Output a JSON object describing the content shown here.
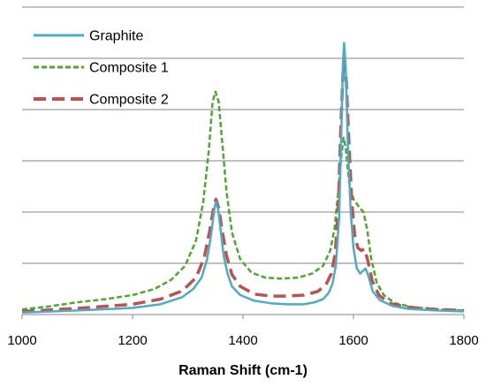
{
  "chart_data": {
    "type": "line",
    "title": "",
    "xlabel": "Raman Shift (cm-1)",
    "ylabel": "",
    "xlim": [
      1000,
      1800
    ],
    "ylim": [
      0,
      6
    ],
    "x_ticks": [
      "1000",
      "1200",
      "1400",
      "1600",
      "1800"
    ],
    "grid": "horizontal",
    "legend_position": "top-left",
    "series": [
      {
        "name": "Graphite",
        "color": "#4BACC6",
        "dash": "solid",
        "points": [
          [
            1000,
            0.04
          ],
          [
            1100,
            0.08
          ],
          [
            1200,
            0.13
          ],
          [
            1250,
            0.2
          ],
          [
            1290,
            0.34
          ],
          [
            1310,
            0.5
          ],
          [
            1325,
            0.72
          ],
          [
            1335,
            1.08
          ],
          [
            1342,
            1.55
          ],
          [
            1348,
            2.05
          ],
          [
            1351,
            2.2
          ],
          [
            1355,
            2.05
          ],
          [
            1360,
            1.6
          ],
          [
            1365,
            1.15
          ],
          [
            1372,
            0.8
          ],
          [
            1380,
            0.55
          ],
          [
            1395,
            0.38
          ],
          [
            1420,
            0.27
          ],
          [
            1450,
            0.22
          ],
          [
            1480,
            0.2
          ],
          [
            1510,
            0.2
          ],
          [
            1530,
            0.24
          ],
          [
            1545,
            0.3
          ],
          [
            1555,
            0.42
          ],
          [
            1562,
            0.6
          ],
          [
            1568,
            0.95
          ],
          [
            1574,
            1.9
          ],
          [
            1578,
            3.6
          ],
          [
            1581,
            4.9
          ],
          [
            1583,
            5.3
          ],
          [
            1586,
            4.8
          ],
          [
            1590,
            3.2
          ],
          [
            1595,
            2.0
          ],
          [
            1600,
            1.3
          ],
          [
            1606,
            0.9
          ],
          [
            1612,
            0.8
          ],
          [
            1617,
            0.85
          ],
          [
            1622,
            0.9
          ],
          [
            1627,
            0.75
          ],
          [
            1635,
            0.45
          ],
          [
            1648,
            0.28
          ],
          [
            1670,
            0.17
          ],
          [
            1700,
            0.11
          ],
          [
            1750,
            0.08
          ],
          [
            1800,
            0.06
          ]
        ]
      },
      {
        "name": "Composite 1",
        "color": "#4EA72E",
        "dash": "dotted",
        "points": [
          [
            1000,
            0.1
          ],
          [
            1050,
            0.16
          ],
          [
            1100,
            0.24
          ],
          [
            1150,
            0.3
          ],
          [
            1200,
            0.38
          ],
          [
            1240,
            0.5
          ],
          [
            1270,
            0.68
          ],
          [
            1295,
            0.95
          ],
          [
            1315,
            1.45
          ],
          [
            1328,
            2.2
          ],
          [
            1338,
            3.2
          ],
          [
            1345,
            4.15
          ],
          [
            1350,
            4.35
          ],
          [
            1356,
            4.15
          ],
          [
            1362,
            3.4
          ],
          [
            1370,
            2.4
          ],
          [
            1380,
            1.6
          ],
          [
            1395,
            1.08
          ],
          [
            1415,
            0.82
          ],
          [
            1440,
            0.72
          ],
          [
            1470,
            0.7
          ],
          [
            1500,
            0.72
          ],
          [
            1525,
            0.8
          ],
          [
            1545,
            0.95
          ],
          [
            1558,
            1.25
          ],
          [
            1566,
            1.7
          ],
          [
            1572,
            2.35
          ],
          [
            1578,
            3.1
          ],
          [
            1582,
            3.45
          ],
          [
            1586,
            3.25
          ],
          [
            1592,
            2.6
          ],
          [
            1600,
            2.25
          ],
          [
            1610,
            2.1
          ],
          [
            1618,
            2.0
          ],
          [
            1625,
            1.65
          ],
          [
            1632,
            1.1
          ],
          [
            1642,
            0.62
          ],
          [
            1655,
            0.38
          ],
          [
            1675,
            0.22
          ],
          [
            1710,
            0.14
          ],
          [
            1760,
            0.1
          ],
          [
            1800,
            0.08
          ]
        ]
      },
      {
        "name": "Composite 2",
        "color": "#C0504D",
        "dash": "dashed",
        "points": [
          [
            1000,
            0.06
          ],
          [
            1100,
            0.12
          ],
          [
            1200,
            0.2
          ],
          [
            1250,
            0.3
          ],
          [
            1290,
            0.46
          ],
          [
            1315,
            0.72
          ],
          [
            1330,
            1.12
          ],
          [
            1340,
            1.65
          ],
          [
            1347,
            2.1
          ],
          [
            1351,
            2.25
          ],
          [
            1356,
            2.08
          ],
          [
            1362,
            1.65
          ],
          [
            1370,
            1.15
          ],
          [
            1380,
            0.78
          ],
          [
            1395,
            0.55
          ],
          [
            1420,
            0.4
          ],
          [
            1450,
            0.36
          ],
          [
            1480,
            0.36
          ],
          [
            1510,
            0.38
          ],
          [
            1535,
            0.45
          ],
          [
            1550,
            0.58
          ],
          [
            1560,
            0.8
          ],
          [
            1567,
            1.2
          ],
          [
            1573,
            2.2
          ],
          [
            1577,
            3.6
          ],
          [
            1581,
            4.7
          ],
          [
            1584,
            4.95
          ],
          [
            1587,
            4.55
          ],
          [
            1592,
            3.3
          ],
          [
            1597,
            2.2
          ],
          [
            1602,
            1.55
          ],
          [
            1608,
            1.3
          ],
          [
            1614,
            1.25
          ],
          [
            1620,
            1.28
          ],
          [
            1626,
            1.05
          ],
          [
            1634,
            0.65
          ],
          [
            1646,
            0.38
          ],
          [
            1665,
            0.22
          ],
          [
            1700,
            0.14
          ],
          [
            1750,
            0.1
          ],
          [
            1800,
            0.08
          ]
        ]
      }
    ]
  }
}
